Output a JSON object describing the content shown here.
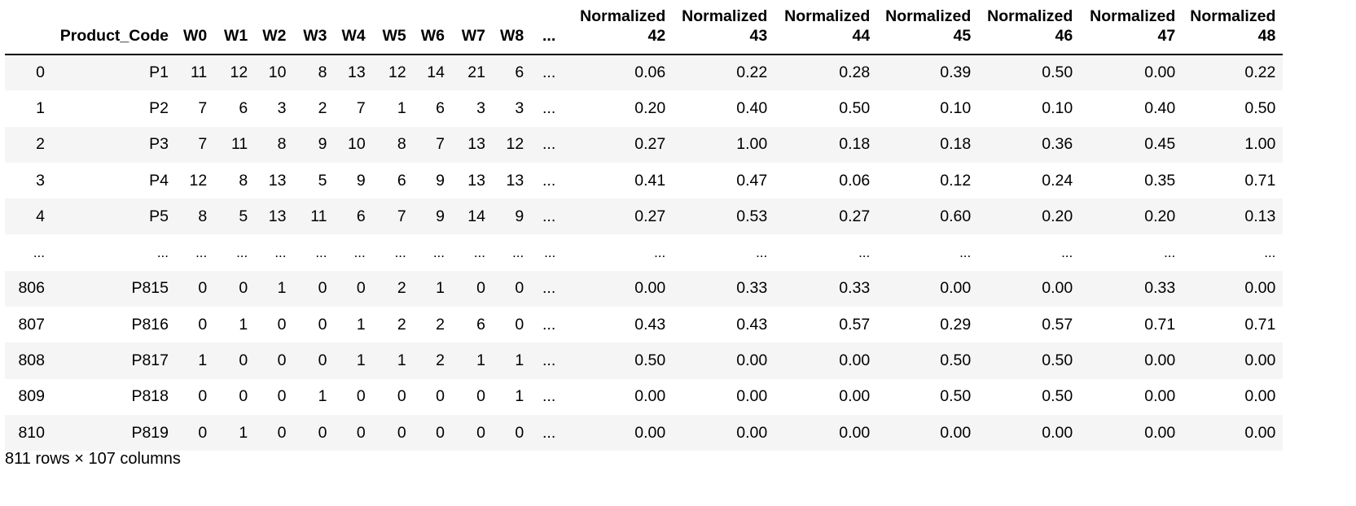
{
  "table": {
    "columns": [
      "",
      "Product_Code",
      "W0",
      "W1",
      "W2",
      "W3",
      "W4",
      "W5",
      "W6",
      "W7",
      "W8",
      "...",
      "Normalized 42",
      "Normalized 43",
      "Normalized 44",
      "Normalized 45",
      "Normalized 46",
      "Normalized 47",
      "Normalized 48"
    ],
    "header_lines": [
      [
        "",
        "Product_Code",
        "W0",
        "W1",
        "W2",
        "W3",
        "W4",
        "W5",
        "W6",
        "W7",
        "W8",
        "...",
        "Normalized",
        "Normalized",
        "Normalized",
        "Normalized",
        "Normalized",
        "Normalized",
        "Normalized"
      ],
      [
        "",
        "",
        "",
        "",
        "",
        "",
        "",
        "",
        "",
        "",
        "",
        "",
        "42",
        "43",
        "44",
        "45",
        "46",
        "47",
        "48"
      ]
    ],
    "rows": [
      {
        "index": "0",
        "cells": [
          "P1",
          "11",
          "12",
          "10",
          "8",
          "13",
          "12",
          "14",
          "21",
          "6",
          "...",
          "0.06",
          "0.22",
          "0.28",
          "0.39",
          "0.50",
          "0.00",
          "0.22"
        ]
      },
      {
        "index": "1",
        "cells": [
          "P2",
          "7",
          "6",
          "3",
          "2",
          "7",
          "1",
          "6",
          "3",
          "3",
          "...",
          "0.20",
          "0.40",
          "0.50",
          "0.10",
          "0.10",
          "0.40",
          "0.50"
        ]
      },
      {
        "index": "2",
        "cells": [
          "P3",
          "7",
          "11",
          "8",
          "9",
          "10",
          "8",
          "7",
          "13",
          "12",
          "...",
          "0.27",
          "1.00",
          "0.18",
          "0.18",
          "0.36",
          "0.45",
          "1.00"
        ]
      },
      {
        "index": "3",
        "cells": [
          "P4",
          "12",
          "8",
          "13",
          "5",
          "9",
          "6",
          "9",
          "13",
          "13",
          "...",
          "0.41",
          "0.47",
          "0.06",
          "0.12",
          "0.24",
          "0.35",
          "0.71"
        ]
      },
      {
        "index": "4",
        "cells": [
          "P5",
          "8",
          "5",
          "13",
          "11",
          "6",
          "7",
          "9",
          "14",
          "9",
          "...",
          "0.27",
          "0.53",
          "0.27",
          "0.60",
          "0.20",
          "0.20",
          "0.13"
        ]
      },
      {
        "index": "...",
        "ellipsis": true,
        "cells": [
          "...",
          "...",
          "...",
          "...",
          "...",
          "...",
          "...",
          "...",
          "...",
          "...",
          "...",
          "...",
          "...",
          "...",
          "...",
          "...",
          "...",
          "..."
        ]
      },
      {
        "index": "806",
        "cells": [
          "P815",
          "0",
          "0",
          "1",
          "0",
          "0",
          "2",
          "1",
          "0",
          "0",
          "...",
          "0.00",
          "0.33",
          "0.33",
          "0.00",
          "0.00",
          "0.33",
          "0.00"
        ]
      },
      {
        "index": "807",
        "cells": [
          "P816",
          "0",
          "1",
          "0",
          "0",
          "1",
          "2",
          "2",
          "6",
          "0",
          "...",
          "0.43",
          "0.43",
          "0.57",
          "0.29",
          "0.57",
          "0.71",
          "0.71"
        ]
      },
      {
        "index": "808",
        "cells": [
          "P817",
          "1",
          "0",
          "0",
          "0",
          "1",
          "1",
          "2",
          "1",
          "1",
          "...",
          "0.50",
          "0.00",
          "0.00",
          "0.50",
          "0.50",
          "0.00",
          "0.00"
        ]
      },
      {
        "index": "809",
        "cells": [
          "P818",
          "0",
          "0",
          "0",
          "1",
          "0",
          "0",
          "0",
          "0",
          "1",
          "...",
          "0.00",
          "0.00",
          "0.00",
          "0.50",
          "0.50",
          "0.00",
          "0.00"
        ]
      },
      {
        "index": "810",
        "cells": [
          "P819",
          "0",
          "1",
          "0",
          "0",
          "0",
          "0",
          "0",
          "0",
          "0",
          "...",
          "0.00",
          "0.00",
          "0.00",
          "0.00",
          "0.00",
          "0.00",
          "0.00"
        ]
      }
    ]
  },
  "footer": {
    "shape_text": "811 rows × 107 columns"
  },
  "colors": {
    "stripe": "#f5f5f5",
    "text": "#000000",
    "header_rule": "#000000"
  }
}
